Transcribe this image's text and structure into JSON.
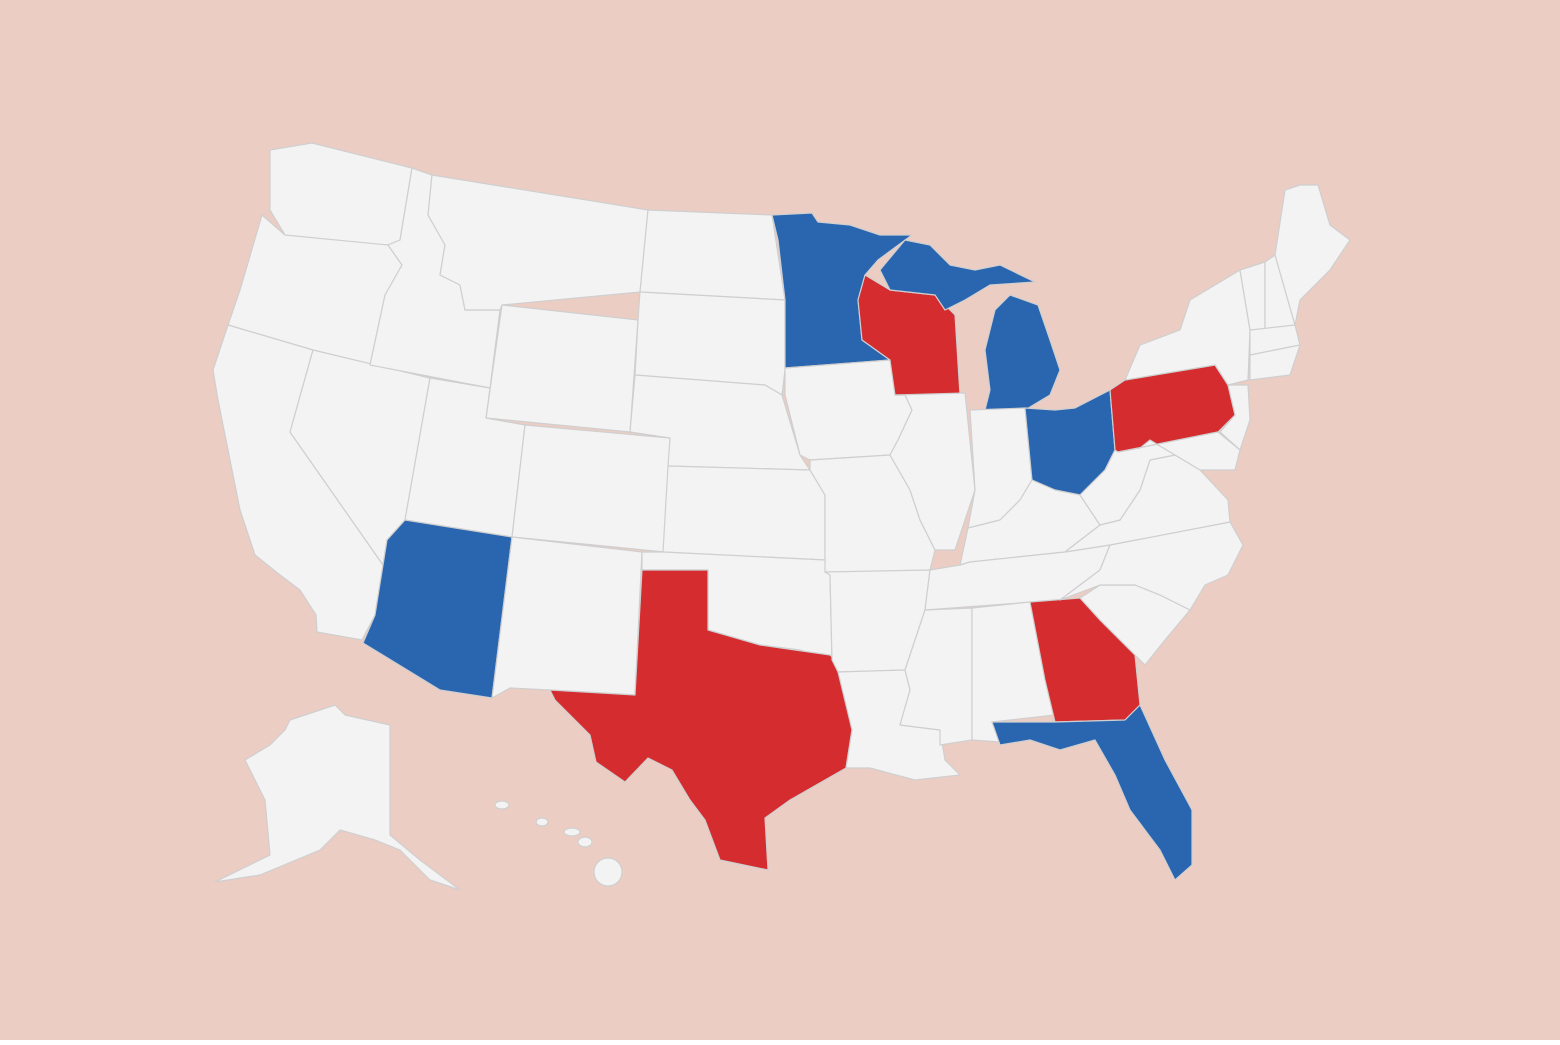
{
  "colors": {
    "background": "#ECCDC3",
    "land": "#F3F3F3",
    "border": "#CFCFCF",
    "blue": "#2A65B0",
    "red": "#D42C2F"
  },
  "state_fills": {
    "MN": "blue",
    "MI": "blue",
    "OH": "blue",
    "AZ": "blue",
    "FL": "blue",
    "WI": "red",
    "TX": "red",
    "GA": "red",
    "PA": "red"
  }
}
